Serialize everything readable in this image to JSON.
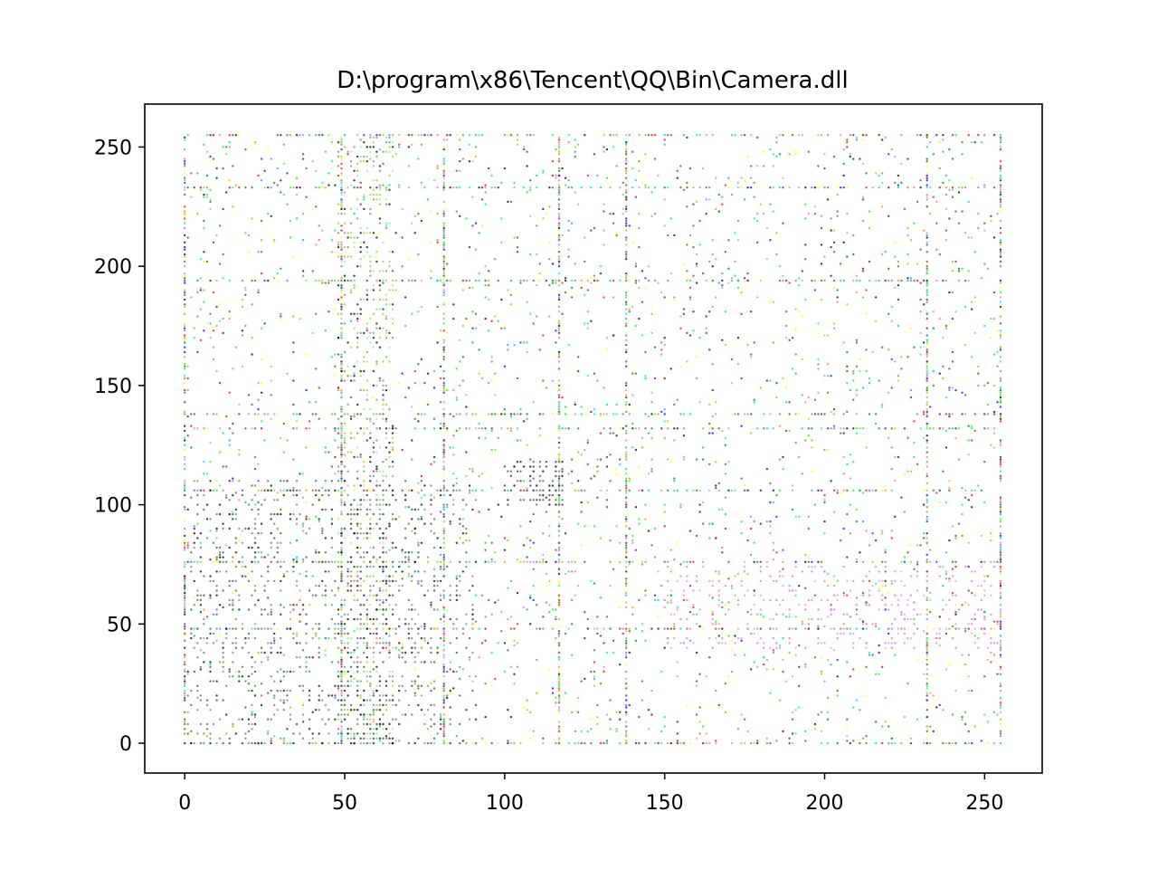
{
  "chart_data": {
    "type": "scatter",
    "title": "D:\\program\\x86\\Tencent\\QQ\\Bin\\Camera.dll",
    "xlabel": "",
    "ylabel": "",
    "xlim": [
      -12.5,
      268
    ],
    "ylim": [
      -12.5,
      268
    ],
    "x_ticks": [
      0,
      50,
      100,
      150,
      200,
      250
    ],
    "y_ticks": [
      0,
      50,
      100,
      150,
      200,
      250
    ],
    "x_tick_labels": [
      "0",
      "50",
      "100",
      "150",
      "200",
      "250"
    ],
    "y_tick_labels": [
      "0",
      "50",
      "100",
      "150",
      "200",
      "250"
    ],
    "grid": false,
    "legend": "none",
    "palette": [
      "#000000",
      "#808080",
      "#0000ff",
      "#008000",
      "#ff0000",
      "#800080",
      "#00ced1",
      "#ff69b4",
      "#9acd32",
      "#ffff00",
      "#00ff7f",
      "#8b4513",
      "#1e90ff",
      "#a9a9a9",
      "#00ff00",
      "#ff8c00"
    ],
    "dense_rows": [
      0,
      48,
      76,
      106,
      132,
      138,
      194,
      233,
      255
    ],
    "dense_cols": [
      0,
      49,
      81,
      117,
      138,
      232,
      255
    ],
    "clusters": [
      {
        "x": [
          48,
          65
        ],
        "y": [
          0,
          255
        ],
        "palette": [
          "#90ee90",
          "#808080",
          "#000000",
          "#9acd32"
        ],
        "density": 0.55
      },
      {
        "x": [
          100,
          118
        ],
        "y": [
          100,
          118
        ],
        "palette": [
          "#000000",
          "#333333",
          "#555555"
        ],
        "density": 0.7
      },
      {
        "x": [
          150,
          255
        ],
        "y": [
          40,
          75
        ],
        "palette": [
          "#ee82ee",
          "#da70d6",
          "#dda0dd",
          "#ff69b4"
        ],
        "density": 0.35
      },
      {
        "x": [
          0,
          90
        ],
        "y": [
          0,
          110
        ],
        "palette": [
          "#000000",
          "#808080",
          "#2f4f4f",
          "#696969"
        ],
        "density": 0.35
      }
    ]
  }
}
